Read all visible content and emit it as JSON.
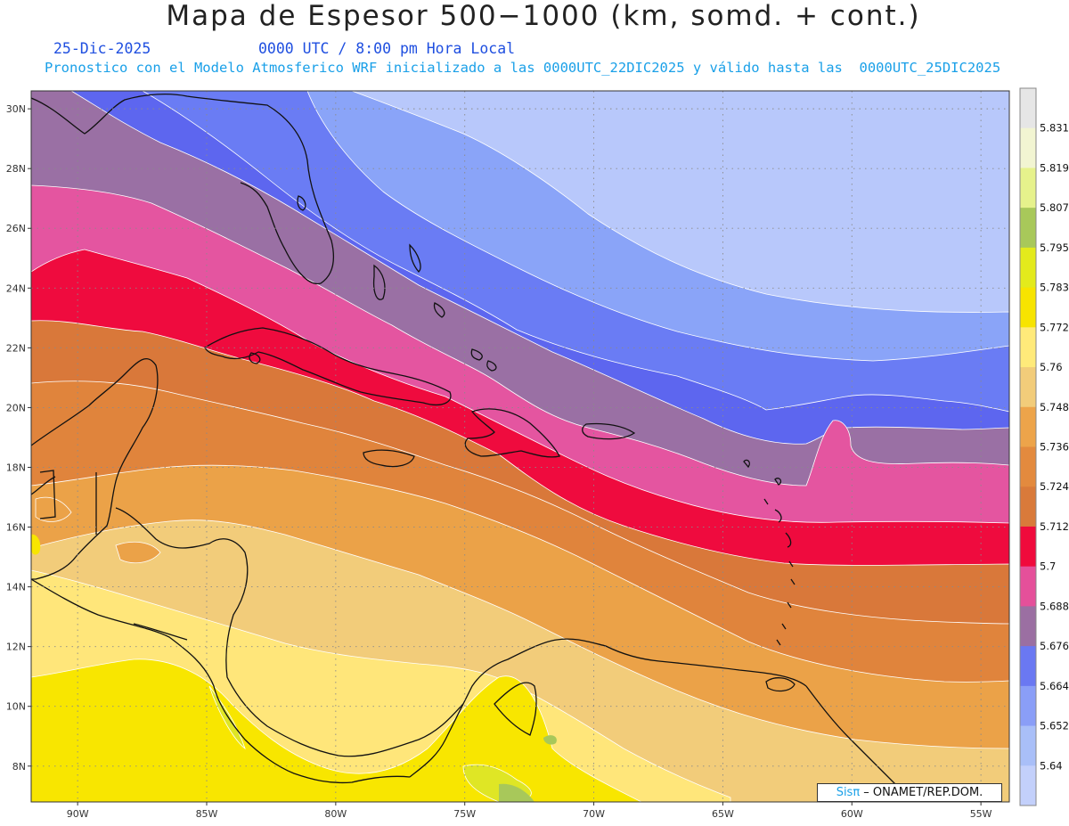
{
  "header": {
    "title": "Mapa de Espesor 500−1000 (km, somd. + cont.)",
    "date": "25-Dic-2025",
    "time": "0000 UTC / 8:00 pm Hora Local",
    "forecast": "Pronostico con el Modelo Atmosferico WRF inicializado a las 0000UTC_22DIC2025 y válido hasta las  0000UTC_25DIC2025"
  },
  "axes": {
    "lat_labels": [
      "30N",
      "28N",
      "26N",
      "24N",
      "22N",
      "20N",
      "18N",
      "16N",
      "14N",
      "12N",
      "10N",
      "8N"
    ],
    "lon_labels": [
      "90W",
      "85W",
      "80W",
      "75W",
      "70W",
      "65W",
      "60W",
      "55W"
    ],
    "lat_values": [
      30,
      28,
      26,
      24,
      22,
      20,
      18,
      16,
      14,
      12,
      10,
      8
    ],
    "lon_values": [
      -90,
      -85,
      -80,
      -75,
      -70,
      -65,
      -60,
      -55
    ],
    "lon_range": [
      -91.8,
      -53.9
    ],
    "lat_range": [
      6.8,
      30.6
    ]
  },
  "colorbar": {
    "labels": [
      "5.831",
      "5.819",
      "5.807",
      "5.795",
      "5.783",
      "5.772",
      "5.76",
      "5.748",
      "5.736",
      "5.724",
      "5.712",
      "5.7",
      "5.688",
      "5.676",
      "5.664",
      "5.652",
      "5.64"
    ],
    "colors": [
      "#e6e6e6",
      "#f2f5d2",
      "#e6f28c",
      "#a8c85a",
      "#e3ea1c",
      "#f7e400",
      "#ffea7a",
      "#f2cc7a",
      "#eda44a",
      "#e38a3e",
      "#d97a3a",
      "#f00a3c",
      "#e5509a",
      "#9b6fa2",
      "#6a78f2",
      "#8a9ef7",
      "#a9bff8",
      "#c3d0fb"
    ]
  },
  "chart_data": {
    "type": "filled-contour-map",
    "variable": "500-1000 hPa thickness (km)",
    "bands_north_to_south": [
      5.64,
      5.652,
      5.664,
      5.676,
      5.688,
      5.7,
      5.712,
      5.724,
      5.736,
      5.748,
      5.76,
      5.772,
      5.783
    ]
  },
  "credit": {
    "brand": "Sisπ",
    "text": " – ONAMET/REP.DOM."
  }
}
